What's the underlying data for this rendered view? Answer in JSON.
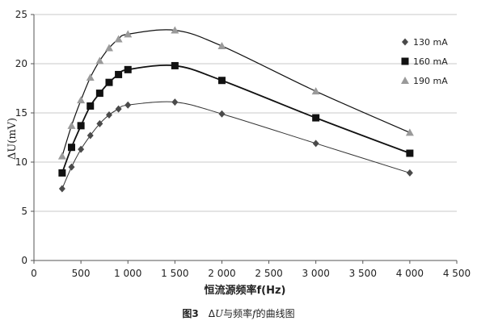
{
  "chart_data": {
    "type": "scatter",
    "xlabel": "恒流源频率f(Hz)",
    "ylabel": "ΔU(mV)",
    "xlim": [
      0,
      4500
    ],
    "ylim": [
      0,
      25
    ],
    "xticks": [
      0,
      500,
      1000,
      1500,
      2000,
      2500,
      3000,
      3500,
      4000,
      4500
    ],
    "xtick_labels": [
      "0",
      "500",
      "1 000",
      "1 500",
      "2 000",
      "2 500",
      "3 000",
      "3 500",
      "4 000",
      "4 500"
    ],
    "yticks": [
      0,
      5,
      10,
      15,
      20,
      25
    ],
    "ytick_labels": [
      "0",
      "5",
      "10",
      "15",
      "20",
      "25"
    ],
    "grid": "horizontal",
    "legend_position": "right",
    "series": [
      {
        "name": "130 mA",
        "marker": "diamond",
        "color": "#4a4a4a",
        "x": [
          300,
          400,
          500,
          600,
          700,
          800,
          900,
          1000,
          1500,
          2000,
          3000,
          4000
        ],
        "y": [
          7.3,
          9.5,
          11.3,
          12.7,
          13.9,
          14.8,
          15.4,
          15.8,
          16.1,
          14.9,
          11.9,
          8.9
        ]
      },
      {
        "name": "160 mA",
        "marker": "square",
        "color": "#111111",
        "x": [
          300,
          400,
          500,
          600,
          700,
          800,
          900,
          1000,
          1500,
          2000,
          3000,
          4000
        ],
        "y": [
          8.9,
          11.5,
          13.7,
          15.7,
          17.0,
          18.1,
          18.9,
          19.4,
          19.8,
          18.3,
          14.5,
          10.9
        ]
      },
      {
        "name": "190 mA",
        "marker": "triangle",
        "color": "#9a9a9a",
        "x": [
          300,
          400,
          500,
          600,
          700,
          800,
          900,
          1000,
          1500,
          2000,
          3000,
          4000
        ],
        "y": [
          10.6,
          13.7,
          16.3,
          18.6,
          20.3,
          21.6,
          22.5,
          23.0,
          23.4,
          21.8,
          17.2,
          13.0
        ]
      }
    ]
  },
  "caption": {
    "fig_no": "图3",
    "delta": "Δ",
    "u_sym": "U",
    "text1": "与频率",
    "f_sym": "f",
    "text2": "的曲线图"
  }
}
